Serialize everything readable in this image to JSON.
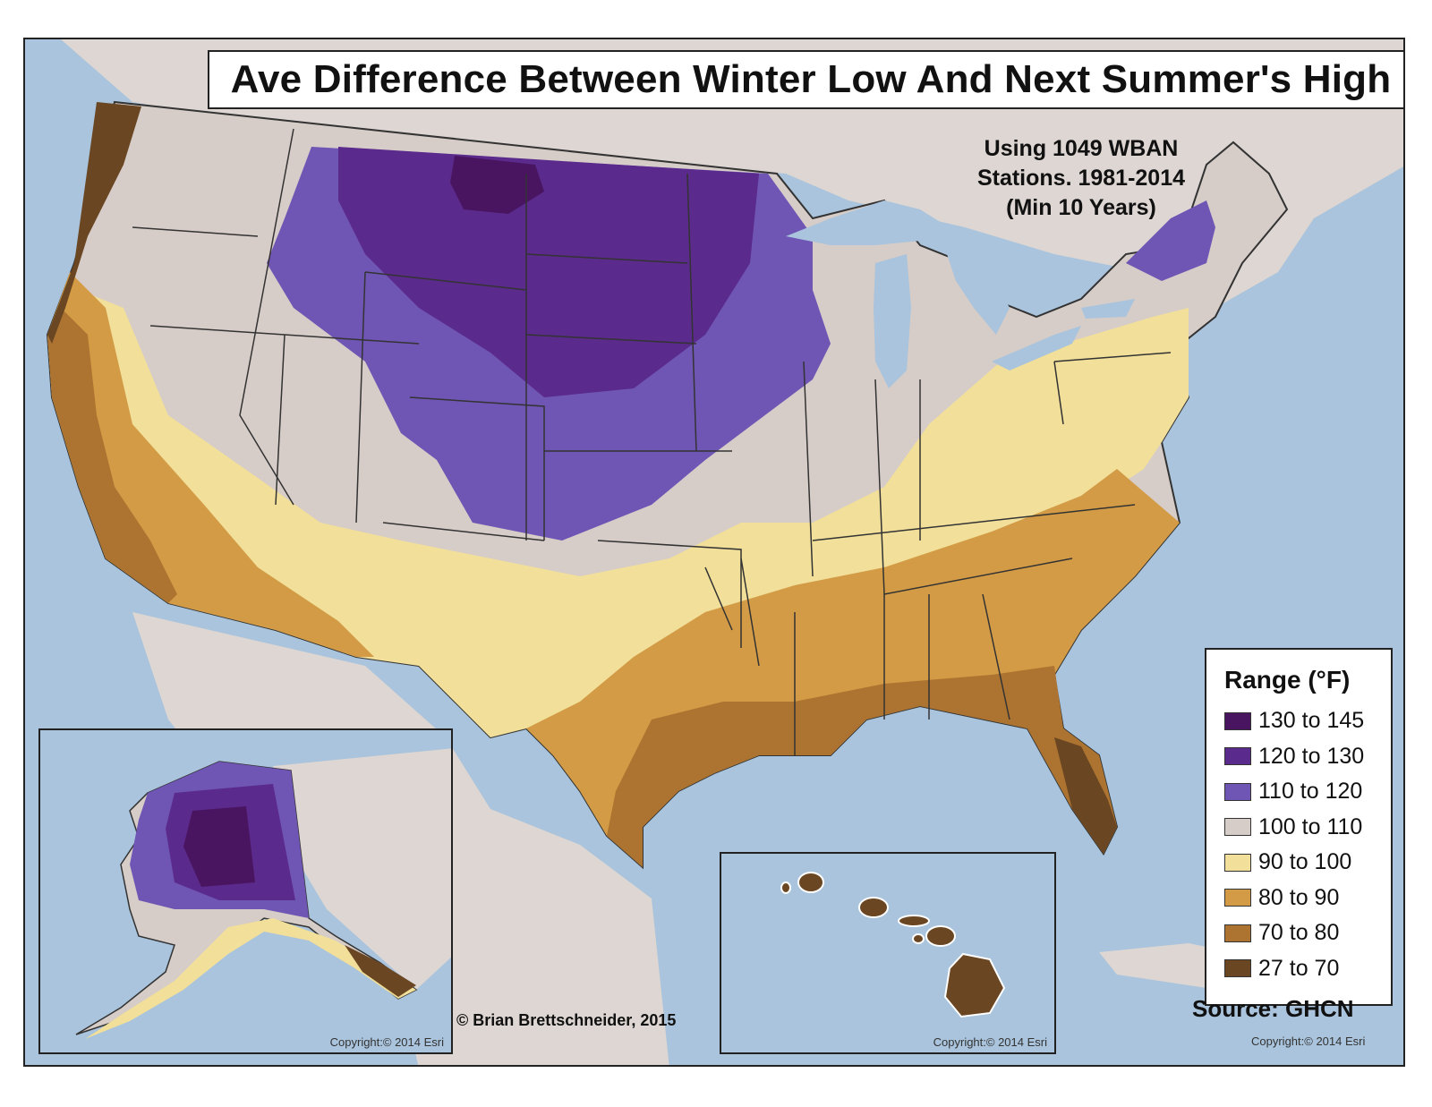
{
  "title": "Ave Difference Between Winter Low And Next Summer's High",
  "subtitle_lines": [
    "Using 1049 WBAN",
    "Stations. 1981-2014",
    "(Min 10 Years)"
  ],
  "legend": {
    "title": "Range (°F)",
    "items": [
      {
        "label": "130 to 145",
        "color": "#4a1560"
      },
      {
        "label": "120 to 130",
        "color": "#5a2a8c"
      },
      {
        "label": "110 to 120",
        "color": "#6f55b4"
      },
      {
        "label": "100 to 110",
        "color": "#d6ccc8"
      },
      {
        "label": "90 to 100",
        "color": "#f1df9a"
      },
      {
        "label": "80 to 90",
        "color": "#d39b45"
      },
      {
        "label": "70 to 80",
        "color": "#ad7431"
      },
      {
        "label": "27 to 70",
        "color": "#6a4622"
      }
    ]
  },
  "source": "Source: GHCN",
  "credit": "© Brian Brettschneider, 2015",
  "basemap_copyright": "Copyright:© 2014 Esri",
  "colors": {
    "water": "#a9c4dc",
    "land": "#ddd6d2",
    "border": "#333333"
  }
}
